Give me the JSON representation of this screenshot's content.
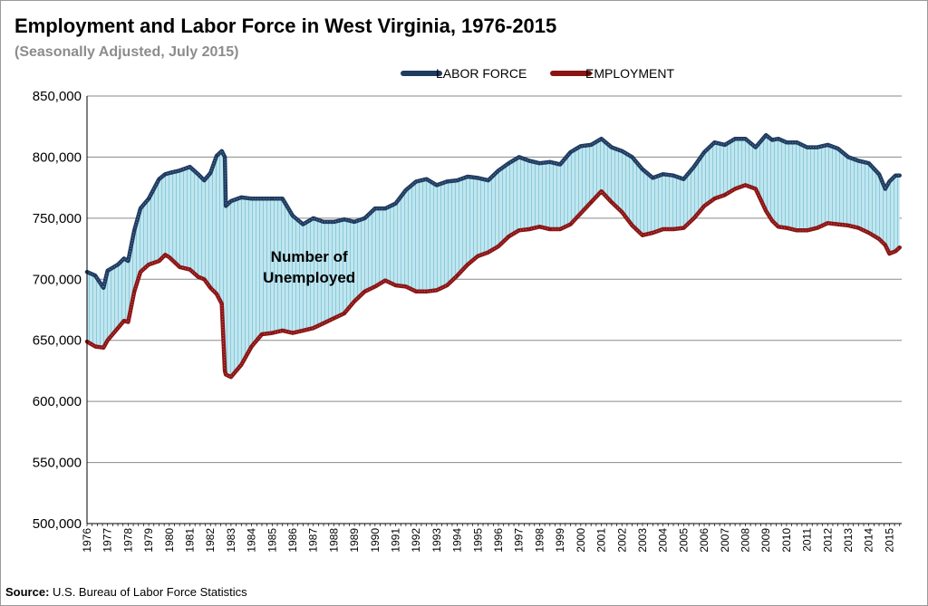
{
  "chart_data": {
    "type": "area",
    "title": "Employment and Labor Force in West Virginia, 1976-2015",
    "subtitle": "(Seasonally Adjusted, July 2015)",
    "xlabel": "",
    "ylabel": "",
    "ylim": [
      500000,
      850000
    ],
    "yticks": [
      500000,
      550000,
      600000,
      650000,
      700000,
      750000,
      800000,
      850000
    ],
    "ytick_labels": [
      "500,000",
      "550,000",
      "600,000",
      "650,000",
      "700,000",
      "750,000",
      "800,000",
      "850,000"
    ],
    "xlim": [
      1976,
      2015.6
    ],
    "xtick_labels": [
      "1976",
      "1977",
      "1978",
      "1979",
      "1980",
      "1981",
      "1982",
      "1983",
      "1984",
      "1985",
      "1986",
      "1987",
      "1988",
      "1989",
      "1990",
      "1991",
      "1992",
      "1993",
      "1994",
      "1995",
      "1996",
      "1997",
      "1998",
      "1999",
      "2000",
      "2001",
      "2002",
      "2003",
      "2004",
      "2005",
      "2006",
      "2007",
      "2008",
      "2009",
      "2010",
      "2011",
      "2012",
      "2013",
      "2014",
      "2015"
    ],
    "grid": "horizontal",
    "legend_position": "top-right",
    "series": [
      {
        "name": "LABOR FORCE",
        "color": "#1f3b5f",
        "x": [
          1976.0,
          1976.4,
          1976.8,
          1977.0,
          1977.5,
          1977.8,
          1978.0,
          1978.3,
          1978.6,
          1979.0,
          1979.5,
          1979.8,
          1980.0,
          1980.5,
          1981.0,
          1981.4,
          1981.7,
          1982.0,
          1982.3,
          1982.55,
          1982.7,
          1982.75,
          1983.0,
          1983.5,
          1984.0,
          1984.5,
          1985.0,
          1985.5,
          1986.0,
          1986.5,
          1987.0,
          1987.5,
          1988.0,
          1988.5,
          1989.0,
          1989.5,
          1990.0,
          1990.5,
          1991.0,
          1991.5,
          1992.0,
          1992.5,
          1993.0,
          1993.5,
          1994.0,
          1994.5,
          1995.0,
          1995.5,
          1996.0,
          1996.5,
          1997.0,
          1997.5,
          1998.0,
          1998.5,
          1999.0,
          1999.5,
          2000.0,
          2000.5,
          2001.0,
          2001.5,
          2002.0,
          2002.5,
          2003.0,
          2003.5,
          2004.0,
          2004.5,
          2005.0,
          2005.5,
          2006.0,
          2006.5,
          2007.0,
          2007.5,
          2008.0,
          2008.5,
          2009.0,
          2009.3,
          2009.6,
          2010.0,
          2010.5,
          2011.0,
          2011.5,
          2012.0,
          2012.5,
          2013.0,
          2013.5,
          2014.0,
          2014.5,
          2014.8,
          2015.0,
          2015.3,
          2015.5
        ],
        "values": [
          706000,
          703000,
          693000,
          707000,
          712000,
          717000,
          715000,
          740000,
          758000,
          766000,
          782000,
          786000,
          787000,
          789000,
          792000,
          786000,
          781000,
          787000,
          801000,
          805000,
          800000,
          760000,
          764000,
          767000,
          766000,
          766000,
          766000,
          766000,
          752000,
          745000,
          750000,
          747000,
          747000,
          749000,
          747000,
          750000,
          758000,
          758000,
          762000,
          773000,
          780000,
          782000,
          777000,
          780000,
          781000,
          784000,
          783000,
          781000,
          789000,
          795000,
          800000,
          797000,
          795000,
          796000,
          794000,
          804000,
          809000,
          810000,
          815000,
          808000,
          805000,
          800000,
          790000,
          783000,
          786000,
          785000,
          782000,
          792000,
          804000,
          812000,
          810000,
          815000,
          815000,
          808000,
          818000,
          814000,
          815000,
          812000,
          812000,
          808000,
          808000,
          810000,
          807000,
          800000,
          797000,
          795000,
          786000,
          774000,
          780000,
          785000,
          785000
        ]
      },
      {
        "name": "EMPLOYMENT",
        "color": "#8b1414",
        "x": [
          1976.0,
          1976.4,
          1976.8,
          1977.0,
          1977.5,
          1977.8,
          1978.0,
          1978.3,
          1978.6,
          1979.0,
          1979.5,
          1979.8,
          1980.0,
          1980.5,
          1981.0,
          1981.4,
          1981.7,
          1982.0,
          1982.3,
          1982.55,
          1982.7,
          1982.75,
          1983.0,
          1983.5,
          1984.0,
          1984.5,
          1985.0,
          1985.5,
          1986.0,
          1986.5,
          1987.0,
          1987.5,
          1988.0,
          1988.5,
          1989.0,
          1989.5,
          1990.0,
          1990.5,
          1991.0,
          1991.5,
          1992.0,
          1992.5,
          1993.0,
          1993.5,
          1994.0,
          1994.5,
          1995.0,
          1995.5,
          1996.0,
          1996.5,
          1997.0,
          1997.5,
          1998.0,
          1998.5,
          1999.0,
          1999.5,
          2000.0,
          2000.5,
          2001.0,
          2001.5,
          2002.0,
          2002.5,
          2003.0,
          2003.5,
          2004.0,
          2004.5,
          2005.0,
          2005.5,
          2006.0,
          2006.5,
          2007.0,
          2007.5,
          2008.0,
          2008.5,
          2009.0,
          2009.3,
          2009.6,
          2010.0,
          2010.5,
          2011.0,
          2011.5,
          2012.0,
          2012.5,
          2013.0,
          2013.5,
          2014.0,
          2014.5,
          2014.8,
          2015.0,
          2015.3,
          2015.5
        ],
        "values": [
          649000,
          645000,
          644000,
          650000,
          660000,
          666000,
          665000,
          690000,
          706000,
          712000,
          715000,
          720000,
          718000,
          710000,
          708000,
          702000,
          700000,
          693000,
          688000,
          680000,
          625000,
          622000,
          620000,
          630000,
          645000,
          655000,
          656000,
          658000,
          656000,
          658000,
          660000,
          664000,
          668000,
          672000,
          682000,
          690000,
          694000,
          699000,
          695000,
          694000,
          690000,
          690000,
          691000,
          695000,
          703000,
          712000,
          719000,
          722000,
          727000,
          735000,
          740000,
          741000,
          743000,
          741000,
          741000,
          745000,
          754000,
          763000,
          772000,
          763000,
          755000,
          744000,
          736000,
          738000,
          741000,
          741000,
          742000,
          750000,
          760000,
          766000,
          769000,
          774000,
          777000,
          774000,
          756000,
          748000,
          743000,
          742000,
          740000,
          740000,
          742000,
          746000,
          745000,
          744000,
          742000,
          738000,
          733000,
          728000,
          721000,
          723000,
          726000
        ]
      }
    ],
    "annotations": [
      {
        "text_line1": "Number of",
        "text_line2": "Unemployed",
        "x": 1986.8,
        "y": 704000
      }
    ],
    "fill_between_color": "#add8e6"
  },
  "source": {
    "label": "Source:",
    "text": "U.S. Bureau of Labor Force Statistics"
  }
}
